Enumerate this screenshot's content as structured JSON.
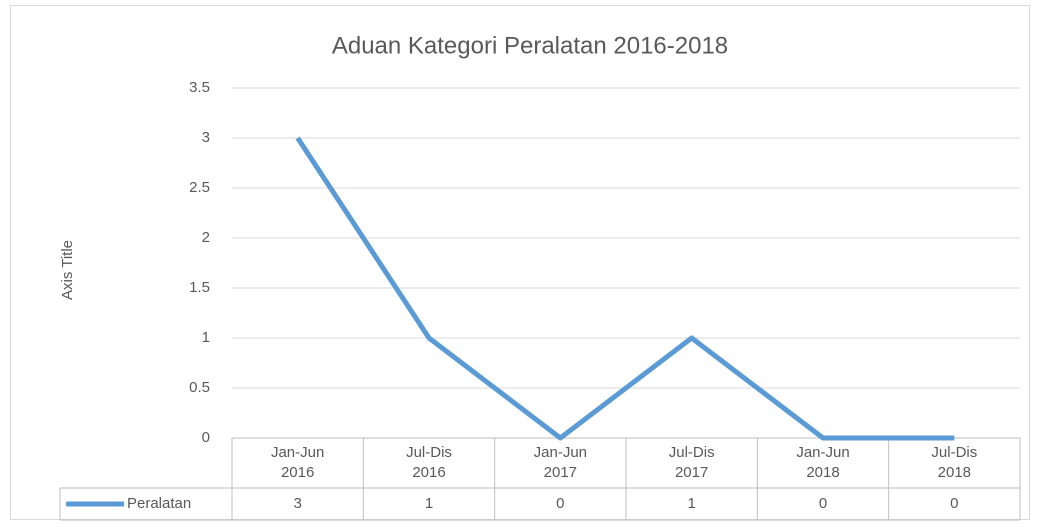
{
  "chart_data": {
    "type": "line",
    "title": "Aduan Kategori Peralatan 2016-2018",
    "y_label": "Axis Title",
    "categories": [
      [
        "Jan-Jun",
        "2016"
      ],
      [
        "Jul-Dis",
        "2016"
      ],
      [
        "Jan-Jun",
        "2017"
      ],
      [
        "Jul-Dis",
        "2017"
      ],
      [
        "Jan-Jun",
        "2018"
      ],
      [
        "Jul-Dis",
        "2018"
      ]
    ],
    "series": [
      {
        "name": "Peralatan",
        "color": "#5b9bd5",
        "values": [
          3,
          1,
          0,
          1,
          0,
          0
        ]
      }
    ],
    "ylim": [
      0,
      3.5
    ],
    "yticks": [
      0,
      0.5,
      1,
      1.5,
      2,
      2.5,
      3,
      3.5
    ],
    "grid": true,
    "data_table": true
  }
}
